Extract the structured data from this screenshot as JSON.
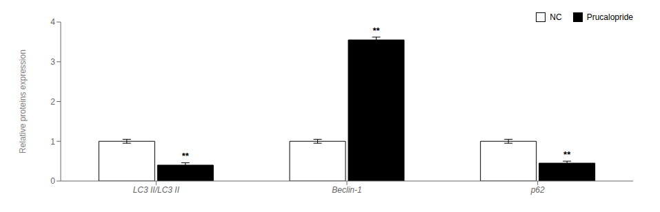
{
  "chart_data": {
    "type": "bar",
    "categories": [
      "LC3 II/LC3 II",
      "Beclin-1",
      "p62"
    ],
    "series": [
      {
        "name": "NC",
        "color": "white",
        "values": [
          1.0,
          1.0,
          1.0
        ],
        "errors": [
          0.05,
          0.05,
          0.05
        ]
      },
      {
        "name": "Prucalopride",
        "color": "black",
        "values": [
          0.4,
          3.55,
          0.45
        ],
        "errors": [
          0.06,
          0.07,
          0.05
        ]
      }
    ],
    "ylabel": "Relative proteins expression",
    "ylim": [
      0,
      4.0
    ],
    "yticks": [
      0,
      1,
      2,
      3,
      4
    ],
    "grid": false,
    "legend": "upper right",
    "annotations": [
      {
        "text": "**",
        "category": "LC3 II/LC3 II",
        "series": "Prucalopride"
      },
      {
        "text": "**",
        "category": "Beclin-1",
        "series": "Prucalopride"
      },
      {
        "text": "**",
        "category": "p62",
        "series": "Prucalopride"
      }
    ]
  }
}
